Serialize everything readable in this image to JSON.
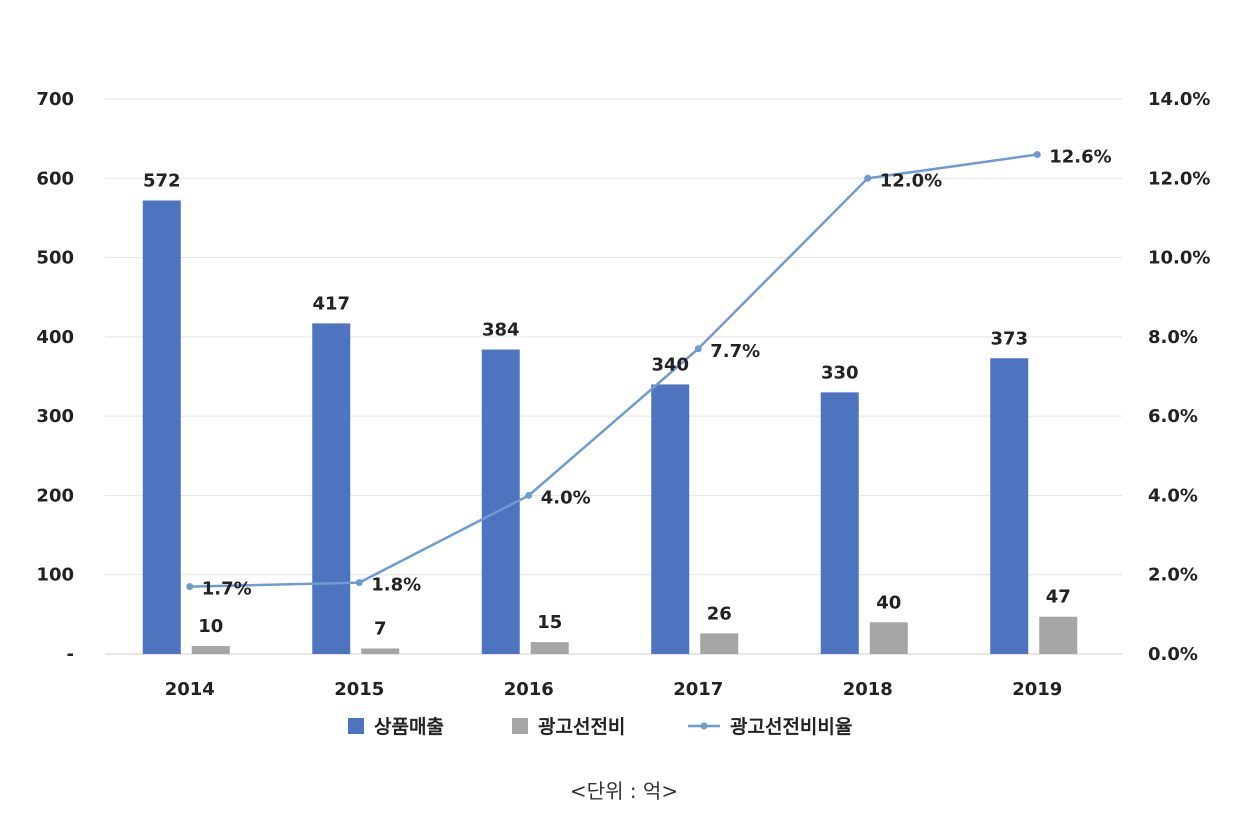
{
  "chart_data": {
    "type": "bar",
    "categories": [
      "2014",
      "2015",
      "2016",
      "2017",
      "2018",
      "2019"
    ],
    "series": [
      {
        "name": "상품매출",
        "type": "bar",
        "axis": "left",
        "color": "#4f74bf",
        "values": [
          572,
          417,
          384,
          340,
          330,
          373
        ],
        "labels": [
          "572",
          "417",
          "384",
          "340",
          "330",
          "373"
        ]
      },
      {
        "name": "광고선전비",
        "type": "bar",
        "axis": "left",
        "color": "#a5a5a5",
        "values": [
          10,
          7,
          15,
          26,
          40,
          47
        ],
        "labels": [
          "10",
          "7",
          "15",
          "26",
          "40",
          "47"
        ]
      },
      {
        "name": "광고선전비비율",
        "type": "line",
        "axis": "right",
        "color": "#6f9bcf",
        "values": [
          1.7,
          1.8,
          4.0,
          7.7,
          12.0,
          12.6
        ],
        "labels": [
          "1.7%",
          "1.8%",
          "4.0%",
          "7.7%",
          "12.0%",
          "12.6%"
        ]
      }
    ],
    "ylim": [
      0,
      700
    ],
    "y2lim": [
      0,
      14
    ],
    "yticks": [
      "-",
      "100",
      "200",
      "300",
      "400",
      "500",
      "600",
      "700"
    ],
    "y2ticks": [
      "0.0%",
      "2.0%",
      "4.0%",
      "6.0%",
      "8.0%",
      "10.0%",
      "12.0%",
      "14.0%"
    ],
    "grid": true,
    "legend_position": "bottom",
    "title": "",
    "xlabel": "",
    "ylabel": ""
  },
  "note": "<단위 : 억>"
}
